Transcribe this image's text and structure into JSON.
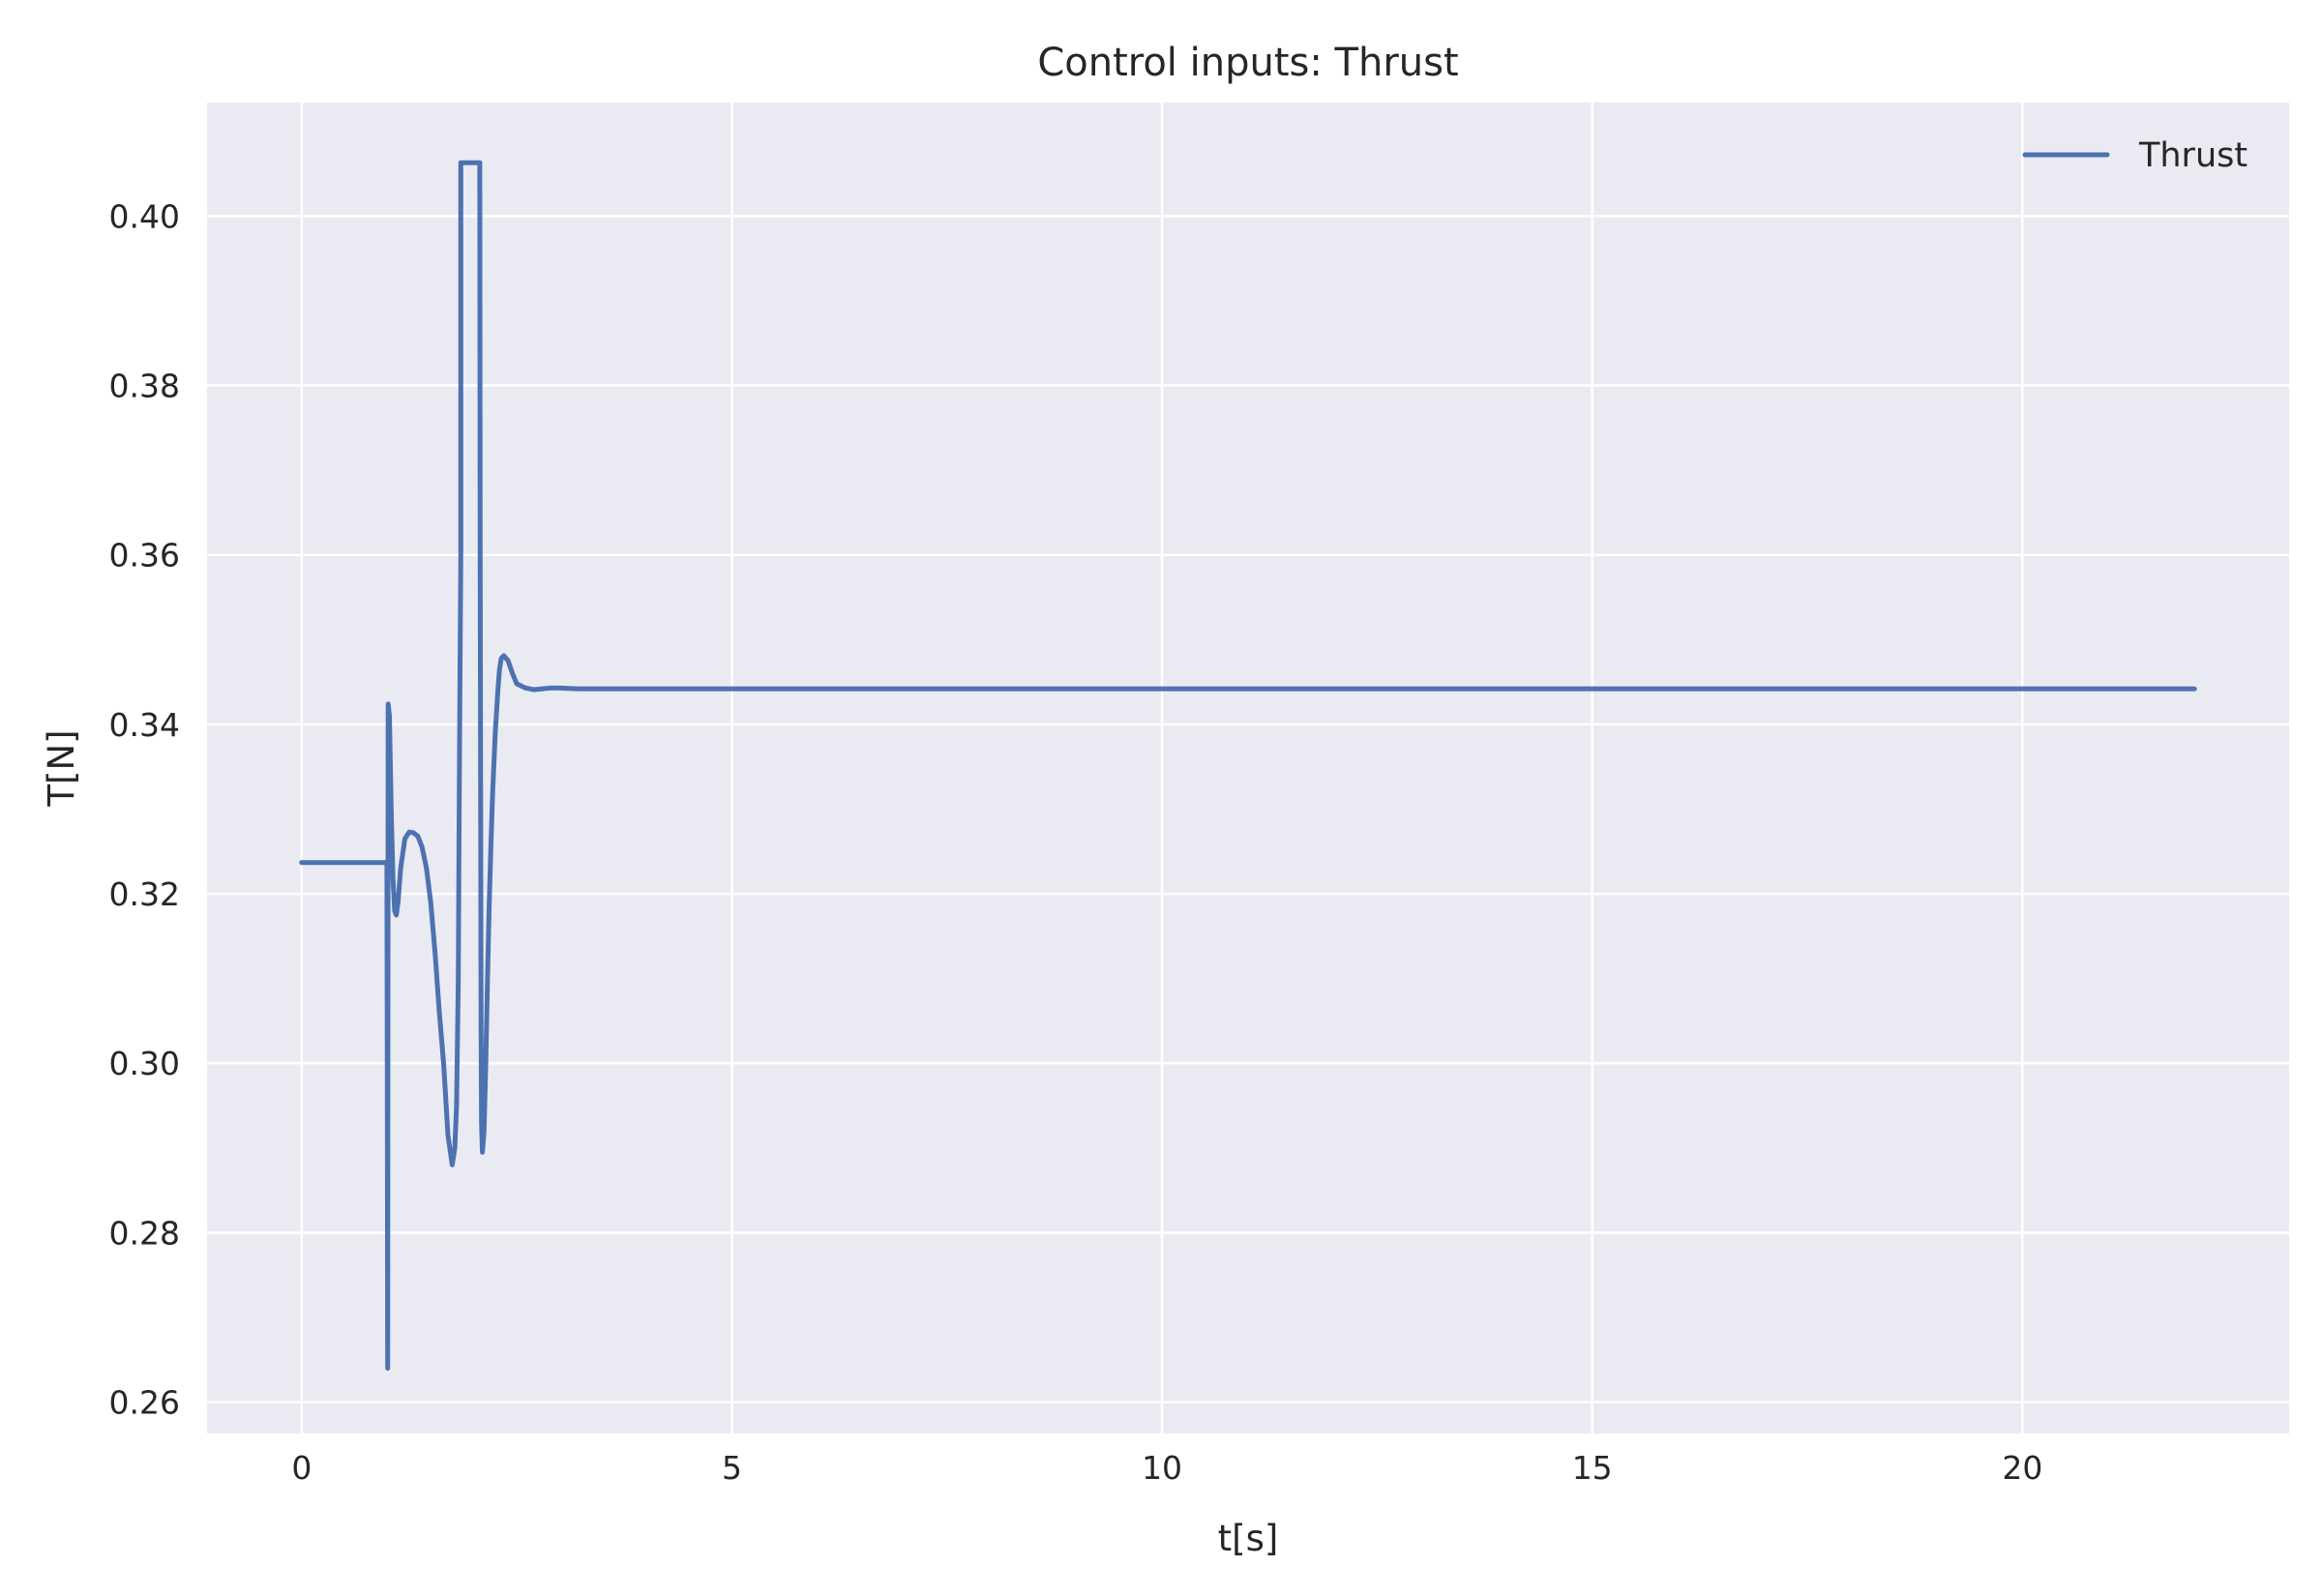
{
  "colors": {
    "plot_background": "#EAEAF2",
    "grid": "#FFFFFF",
    "series": "#4C72B0",
    "text": "#262626"
  },
  "chart_data": {
    "type": "line",
    "title": "Control inputs: Thrust",
    "xlabel": "t[s]",
    "ylabel": "T[N]",
    "xlim": [
      -1.1,
      23.1
    ],
    "ylim": [
      0.2563,
      0.4134
    ],
    "xticks": [
      0,
      5,
      10,
      15,
      20
    ],
    "xtick_labels": [
      "0",
      "5",
      "10",
      "15",
      "20"
    ],
    "yticks": [
      0.26,
      0.28,
      0.3,
      0.32,
      0.34,
      0.36,
      0.38,
      0.4
    ],
    "ytick_labels": [
      "0.26",
      "0.28",
      "0.30",
      "0.32",
      "0.34",
      "0.36",
      "0.38",
      "0.40"
    ],
    "grid": true,
    "legend": {
      "position": "top-right",
      "entries": [
        "Thrust"
      ]
    },
    "series": [
      {
        "name": "Thrust",
        "x": [
          0,
          0.98,
          0.99,
          0.995,
          1.0,
          1.005,
          1.02,
          1.04,
          1.06,
          1.08,
          1.1,
          1.12,
          1.15,
          1.2,
          1.25,
          1.3,
          1.35,
          1.4,
          1.45,
          1.5,
          1.55,
          1.6,
          1.65,
          1.7,
          1.75,
          1.78,
          1.8,
          1.82,
          1.83,
          1.84,
          1.85,
          1.85,
          1.86,
          1.87,
          1.88,
          1.89,
          2.07,
          2.075,
          2.08,
          2.085,
          2.09,
          2.1,
          2.12,
          2.14,
          2.16,
          2.18,
          2.2,
          2.22,
          2.25,
          2.28,
          2.3,
          2.32,
          2.35,
          2.4,
          2.45,
          2.5,
          2.6,
          2.7,
          2.8,
          2.9,
          3.0,
          3.2,
          3.5,
          4.0,
          5.0,
          10.0,
          15.0,
          20.0,
          22.0
        ],
        "values": [
          0.3237,
          0.3237,
          0.3237,
          0.3,
          0.264,
          0.3424,
          0.341,
          0.33,
          0.322,
          0.318,
          0.3175,
          0.319,
          0.323,
          0.3265,
          0.3273,
          0.3272,
          0.3268,
          0.3255,
          0.323,
          0.319,
          0.313,
          0.306,
          0.3,
          0.2915,
          0.288,
          0.29,
          0.295,
          0.31,
          0.33,
          0.345,
          0.36,
          0.4063,
          0.4063,
          0.4063,
          0.4063,
          0.4063,
          0.4063,
          0.36,
          0.33,
          0.305,
          0.293,
          0.2895,
          0.292,
          0.3,
          0.31,
          0.319,
          0.326,
          0.332,
          0.339,
          0.344,
          0.3465,
          0.3478,
          0.3481,
          0.3475,
          0.346,
          0.3448,
          0.3443,
          0.3441,
          0.3442,
          0.3443,
          0.3443,
          0.3442,
          0.3442,
          0.3442,
          0.3442,
          0.3442,
          0.3442,
          0.3442,
          0.3442
        ]
      }
    ]
  }
}
